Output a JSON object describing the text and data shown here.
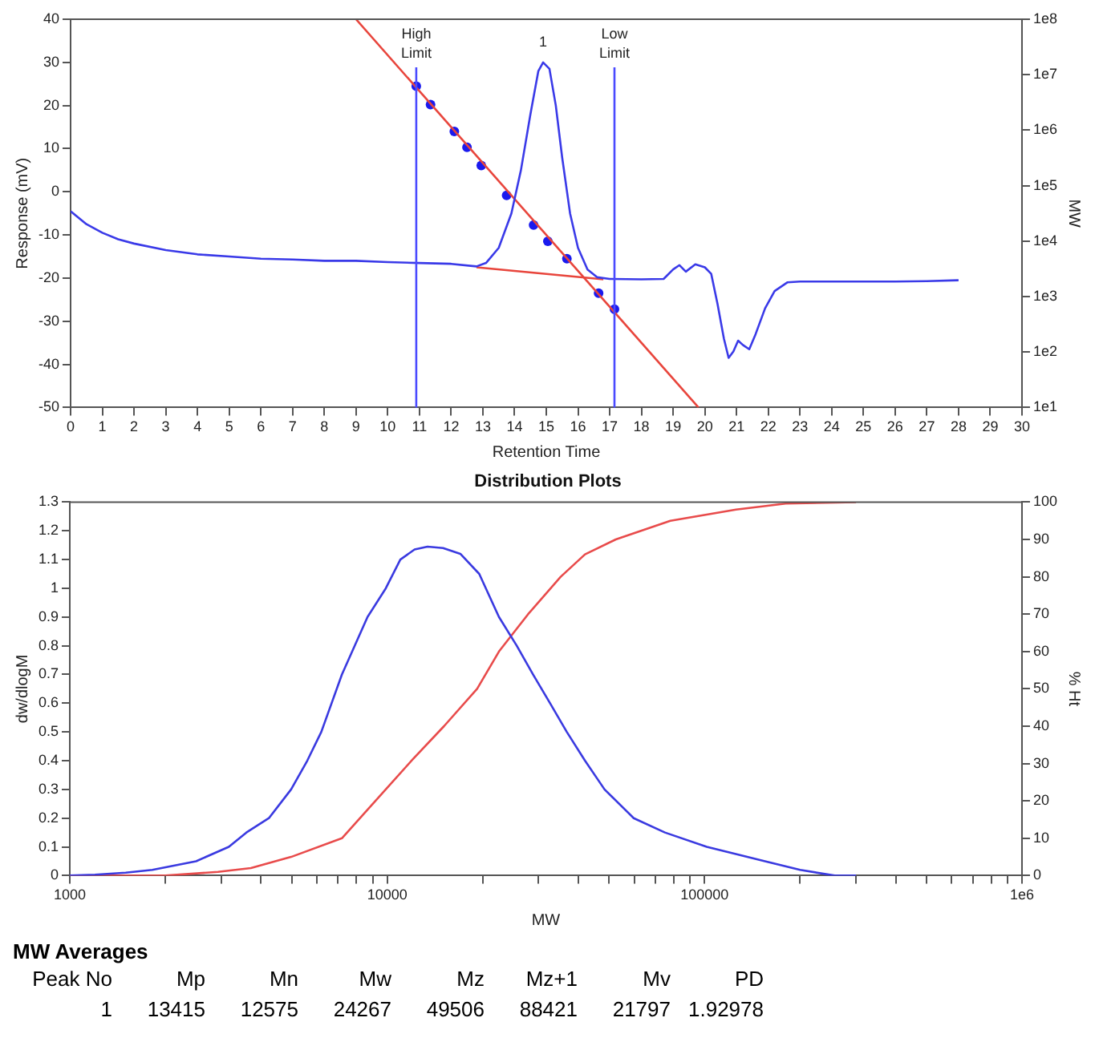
{
  "chart_data": [
    {
      "type": "line",
      "xlabel": "Retention Time",
      "ylabel": "Response (mV)",
      "y2label": "MW",
      "log": "y2",
      "grid": false,
      "legend": false,
      "xlim": [
        0,
        30
      ],
      "xticks": [
        0,
        1,
        2,
        3,
        4,
        5,
        6,
        7,
        8,
        9,
        10,
        11,
        12,
        13,
        14,
        15,
        16,
        17,
        18,
        19,
        20,
        21,
        22,
        23,
        24,
        25,
        26,
        27,
        28,
        29,
        30
      ],
      "ylim": [
        -50,
        40
      ],
      "yticks": [
        -50,
        -40,
        -30,
        -20,
        -10,
        0,
        10,
        20,
        30,
        40
      ],
      "y2lim": [
        10,
        100000000
      ],
      "y2ticks": [
        {
          "value": 10,
          "label": "1e1"
        },
        {
          "value": 100,
          "label": "1e2"
        },
        {
          "value": 1000,
          "label": "1e3"
        },
        {
          "value": 10000,
          "label": "1e4"
        },
        {
          "value": 100000,
          "label": "1e5"
        },
        {
          "value": 1000000,
          "label": "1e6"
        },
        {
          "value": 10000000,
          "label": "1e7"
        },
        {
          "value": 100000000,
          "label": "1e8"
        }
      ],
      "series": [
        {
          "type": "line",
          "color": "#3a3ae8",
          "x": [
            0,
            0.5,
            1,
            1.5,
            2,
            3,
            4,
            5,
            6,
            7,
            8,
            9,
            10,
            11,
            12,
            12.8,
            13.1,
            13.5,
            13.9,
            14.2,
            14.5,
            14.75,
            14.9,
            15.1,
            15.3,
            15.5,
            15.75,
            16,
            16.3,
            16.6,
            17,
            18,
            18.7,
            19,
            19.2,
            19.4,
            19.7,
            20,
            20.2,
            20.4,
            20.6,
            20.75,
            20.9,
            21.05,
            21.2,
            21.4,
            21.6,
            21.9,
            22.2,
            22.6,
            23,
            26,
            27,
            28
          ],
          "values": [
            -4.5,
            -7.5,
            -9.5,
            -11,
            -12,
            -13.5,
            -14.5,
            -15,
            -15.5,
            -15.7,
            -16,
            -16,
            -16.3,
            -16.5,
            -16.7,
            -17.3,
            -16.5,
            -13,
            -5,
            5,
            18,
            28,
            30,
            28.5,
            20,
            8,
            -5,
            -13,
            -18,
            -19.8,
            -20.2,
            -20.3,
            -20.2,
            -18,
            -17,
            -18.5,
            -16.8,
            -17.5,
            -19,
            -26,
            -34,
            -38.5,
            -37,
            -34.5,
            -35.5,
            -36.5,
            -33,
            -27,
            -23,
            -21,
            -20.8,
            -20.8,
            -20.7,
            -20.5
          ]
        },
        {
          "type": "line",
          "color": "#e8453c",
          "x": [
            12.8,
            16.8
          ],
          "values": [
            -17.5,
            -20.3
          ]
        },
        {
          "type": "line",
          "color": "#e8453c",
          "axis": "y2",
          "x": [
            9,
            19.8
          ],
          "values": [
            100000000,
            10
          ]
        },
        {
          "type": "scatter",
          "marker": "circle",
          "color": "#1a1aee",
          "axis": "y2",
          "x": [
            10.9,
            11.35,
            12.1,
            12.5,
            12.95,
            13.75,
            14.6,
            15.05,
            15.65,
            16.65,
            17.15
          ],
          "values": [
            6200000,
            2900000,
            950000,
            490000,
            230000,
            67000,
            19500,
            9900,
            4800,
            1150,
            590
          ]
        }
      ],
      "ref_lines": [
        {
          "axis": "x",
          "value": 10.9,
          "label": "High Limit",
          "color": "#4a4aff"
        },
        {
          "axis": "x",
          "value": 17.15,
          "label": "Low Limit",
          "color": "#4a4aff"
        }
      ],
      "annotations": [
        {
          "text": "1",
          "x": 14.9,
          "y": 30
        }
      ]
    },
    {
      "type": "line",
      "title": "Distribution Plots",
      "xlabel": "MW",
      "ylabel": "dw/dlogM",
      "y2label": "% Ht",
      "log": "x",
      "grid": false,
      "legend": false,
      "xlim": [
        1000,
        1000000
      ],
      "xticks": [
        1000,
        {
          "value": 2000,
          "label": null
        },
        {
          "value": 3000,
          "label": null
        },
        {
          "value": 4000,
          "label": null
        },
        {
          "value": 5000,
          "label": null
        },
        {
          "value": 6000,
          "label": null
        },
        {
          "value": 7000,
          "label": null
        },
        {
          "value": 8000,
          "label": null
        },
        {
          "value": 9000,
          "label": null
        },
        10000,
        {
          "value": 20000,
          "label": null
        },
        {
          "value": 30000,
          "label": null
        },
        {
          "value": 40000,
          "label": null
        },
        {
          "value": 50000,
          "label": null
        },
        {
          "value": 60000,
          "label": null
        },
        {
          "value": 70000,
          "label": null
        },
        {
          "value": 80000,
          "label": null
        },
        {
          "value": 90000,
          "label": null
        },
        100000,
        {
          "value": 200000,
          "label": null
        },
        {
          "value": 300000,
          "label": null
        },
        {
          "value": 400000,
          "label": null
        },
        {
          "value": 500000,
          "label": null
        },
        {
          "value": 600000,
          "label": null
        },
        {
          "value": 700000,
          "label": null
        },
        {
          "value": 800000,
          "label": null
        },
        {
          "value": 900000,
          "label": null
        },
        {
          "value": 1000000,
          "label": "1e6"
        }
      ],
      "ylim": [
        0,
        1.3
      ],
      "yticks": [
        0,
        0.1,
        0.2,
        0.3,
        0.4,
        0.5,
        0.6,
        0.7,
        0.8,
        0.9,
        1,
        1.1,
        1.2,
        1.3
      ],
      "y2lim": [
        0,
        100
      ],
      "y2ticks": [
        0,
        10,
        20,
        30,
        40,
        50,
        60,
        70,
        80,
        90,
        100
      ],
      "series": [
        {
          "type": "line",
          "color": "#3a3ae0",
          "x": [
            1000,
            1200,
            1500,
            1820,
            2500,
            3170,
            3600,
            4240,
            4980,
            5600,
            6200,
            7200,
            8670,
            9900,
            11000,
            12200,
            13400,
            15000,
            17000,
            19500,
            22500,
            25600,
            28800,
            32600,
            36800,
            42000,
            48400,
            59800,
            75000,
            101600,
            155000,
            200000,
            257000,
            300000
          ],
          "values": [
            0,
            0.003,
            0.01,
            0.02,
            0.05,
            0.1,
            0.15,
            0.2,
            0.3,
            0.4,
            0.5,
            0.7,
            0.9,
            1,
            1.1,
            1.135,
            1.145,
            1.14,
            1.12,
            1.05,
            0.9,
            0.8,
            0.7,
            0.6,
            0.5,
            0.4,
            0.3,
            0.2,
            0.15,
            0.1,
            0.05,
            0.02,
            0,
            0
          ]
        },
        {
          "type": "line",
          "color": "#e84b4b",
          "axis": "y2",
          "x": [
            1000,
            2000,
            2930,
            3720,
            4980,
            7200,
            9640,
            12000,
            15100,
            19200,
            22500,
            27800,
            35200,
            42000,
            52500,
            78000,
            125600,
            180000,
            300000
          ],
          "values": [
            0,
            0,
            1,
            2,
            5,
            10,
            22,
            31,
            40,
            50,
            60,
            70,
            80,
            86,
            90,
            95,
            98,
            99.6,
            100
          ]
        }
      ]
    },
    {
      "type": "other",
      "title": "MW Averages",
      "categories": [
        "Peak No",
        "Mp",
        "Mn",
        "Mw",
        "Mz",
        "Mz+1",
        "Mv",
        "PD"
      ],
      "annotations": [
        "1",
        "13415",
        "12575",
        "24267",
        "49506",
        "88421",
        "21797",
        "1.92978"
      ]
    }
  ]
}
